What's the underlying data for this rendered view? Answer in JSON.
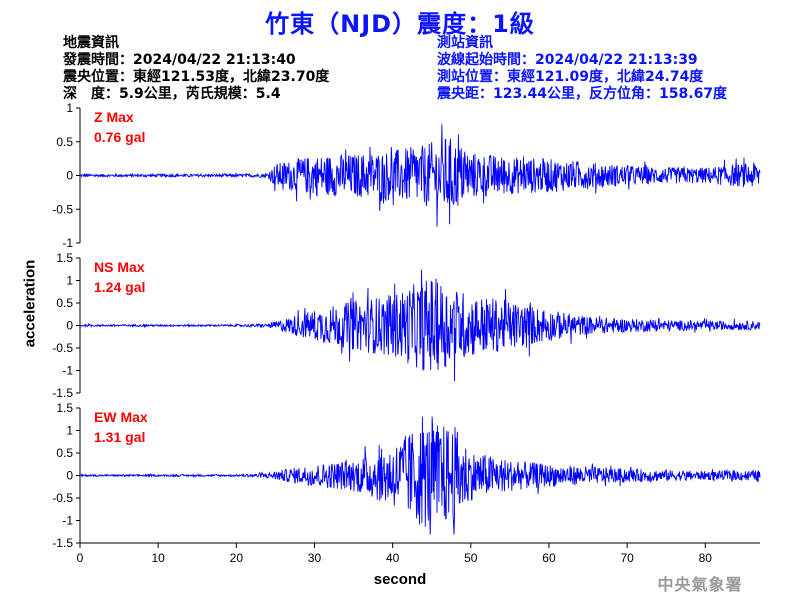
{
  "title": "竹東（NJD）震度：1級",
  "earthquake_info": {
    "heading": "地震資訊",
    "origin_time": "發震時間：2024/04/22 21:13:40",
    "epicenter": "震央位置：東經121.53度，北緯23.70度",
    "depth_magnitude": "深　度：5.9公里，芮氏規模：5.4"
  },
  "station_info": {
    "heading": "測站資訊",
    "wave_start": "波線起始時間：2024/04/22 21:13:39",
    "location": "測站位置：東經121.09度，北緯24.74度",
    "distance": "震央距：123.44公里，反方位角：158.67度"
  },
  "footer": "中央氣象署",
  "colors": {
    "title": "#0b13ff",
    "trace": "#0000ff",
    "peak_label": "#ff0000",
    "axis": "#000000"
  },
  "chart_data": {
    "type": "line",
    "xlabel": "second",
    "ylabel": "acceleration",
    "xlim": [
      0,
      87
    ],
    "xticks": [
      0,
      10,
      20,
      30,
      40,
      50,
      60,
      70,
      80
    ],
    "panels": [
      {
        "component": "Z",
        "peak_label": "Z Max",
        "peak_value": "0.76 gal",
        "peak": 0.76,
        "ylim": [
          -1,
          1
        ],
        "yticks": [
          -1,
          -0.5,
          0,
          0.5,
          1
        ],
        "ytick_labels": [
          "-1",
          "-0.5",
          "0",
          "0.5",
          "1"
        ],
        "envelope": [
          [
            0,
            0.02
          ],
          [
            20,
            0.02
          ],
          [
            24,
            0.03
          ],
          [
            25,
            0.18
          ],
          [
            30,
            0.3
          ],
          [
            35,
            0.32
          ],
          [
            40,
            0.38
          ],
          [
            44,
            0.45
          ],
          [
            47,
            0.6
          ],
          [
            50,
            0.35
          ],
          [
            55,
            0.28
          ],
          [
            60,
            0.25
          ],
          [
            65,
            0.2
          ],
          [
            70,
            0.15
          ],
          [
            75,
            0.12
          ],
          [
            80,
            0.12
          ],
          [
            87,
            0.2
          ]
        ]
      },
      {
        "component": "NS",
        "peak_label": "NS Max",
        "peak_value": "1.24 gal",
        "peak": 1.24,
        "ylim": [
          -1.5,
          1.5
        ],
        "yticks": [
          -1.5,
          -1,
          -0.5,
          0,
          0.5,
          1,
          1.5
        ],
        "ytick_labels": [
          "-1.5",
          "-1",
          "-0.5",
          "0",
          "0.5",
          "1",
          "1.5"
        ],
        "envelope": [
          [
            0,
            0.02
          ],
          [
            20,
            0.02
          ],
          [
            24,
            0.04
          ],
          [
            27,
            0.2
          ],
          [
            30,
            0.35
          ],
          [
            35,
            0.55
          ],
          [
            40,
            0.7
          ],
          [
            45,
            1.1
          ],
          [
            47,
            0.9
          ],
          [
            50,
            0.7
          ],
          [
            55,
            0.55
          ],
          [
            60,
            0.35
          ],
          [
            65,
            0.2
          ],
          [
            70,
            0.15
          ],
          [
            80,
            0.1
          ],
          [
            87,
            0.1
          ]
        ]
      },
      {
        "component": "EW",
        "peak_label": "EW Max",
        "peak_value": "1.31 gal",
        "peak": 1.31,
        "ylim": [
          -1.5,
          1.5
        ],
        "yticks": [
          -1.5,
          -1,
          -0.5,
          0,
          0.5,
          1,
          1.5
        ],
        "ytick_labels": [
          "-1.5",
          "-1",
          "-0.5",
          "0",
          "0.5",
          "1",
          "1.5"
        ],
        "envelope": [
          [
            0,
            0.02
          ],
          [
            20,
            0.02
          ],
          [
            24,
            0.06
          ],
          [
            25,
            0.1
          ],
          [
            30,
            0.25
          ],
          [
            35,
            0.35
          ],
          [
            40,
            0.7
          ],
          [
            44,
            1.2
          ],
          [
            48,
            1.1
          ],
          [
            50,
            0.55
          ],
          [
            55,
            0.35
          ],
          [
            60,
            0.25
          ],
          [
            65,
            0.2
          ],
          [
            70,
            0.15
          ],
          [
            80,
            0.1
          ],
          [
            87,
            0.12
          ]
        ]
      }
    ]
  }
}
